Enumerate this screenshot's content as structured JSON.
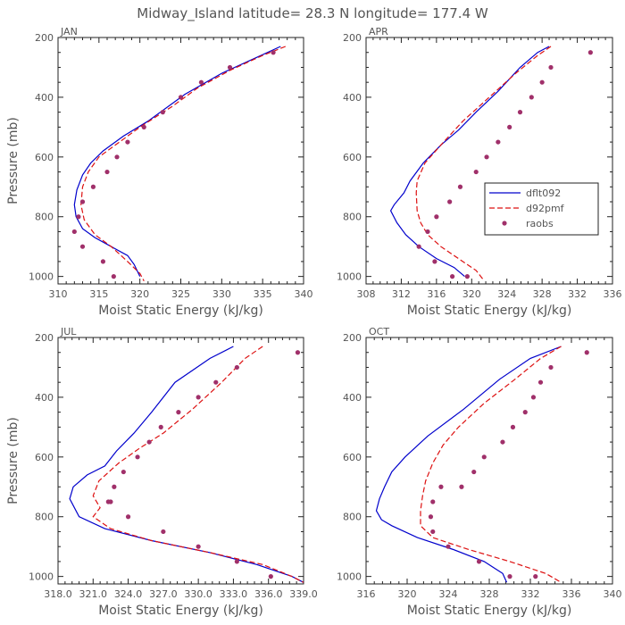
{
  "figure": {
    "title": "Midway_Island  latitude= 28.3 N longitude= 177.4 W"
  },
  "series_names": {
    "model1": "dflt092",
    "model2": "d92pmf",
    "obs": "raobs"
  },
  "colors": {
    "model1": "#0000cc",
    "model2": "#dd1111",
    "obs": "#a0306a"
  },
  "chart_data": [
    {
      "type": "line",
      "panel": "JAN",
      "title": "",
      "xlabel": "Moist Static Energy (kJ/kg)",
      "ylabel": "Pressure (mb)",
      "xlim": [
        310,
        340
      ],
      "ylim": [
        1025,
        200
      ],
      "xticks": [
        310,
        315,
        320,
        325,
        330,
        335,
        340
      ],
      "xticklabels": [
        "310",
        "315",
        "320",
        "325",
        "330",
        "335",
        "340"
      ],
      "yticks": [
        200,
        400,
        600,
        800,
        1000
      ],
      "yticklabels": [
        "200",
        "400",
        "600",
        "800",
        "1000"
      ],
      "legend": false,
      "series": [
        {
          "name": "dflt092",
          "style": "solid",
          "x": [
            337.2,
            334.0,
            330.0,
            325.5,
            321.0,
            318.0,
            315.5,
            314.0,
            313.0,
            312.3,
            312.0,
            312.2,
            313.0,
            314.5,
            316.5,
            318.5,
            319.3,
            320.0
          ],
          "y": [
            230,
            270,
            320,
            390,
            480,
            530,
            580,
            620,
            660,
            710,
            760,
            800,
            840,
            870,
            900,
            930,
            960,
            1000
          ]
        },
        {
          "name": "d92pmf",
          "style": "dashed",
          "x": [
            337.8,
            335.0,
            331.0,
            327.0,
            324.0,
            320.0,
            317.0,
            315.0,
            313.7,
            313.0,
            312.8,
            313.2,
            314.5,
            316.5,
            318.5,
            320.0,
            320.5
          ],
          "y": [
            230,
            260,
            310,
            370,
            430,
            500,
            560,
            600,
            650,
            700,
            760,
            810,
            860,
            900,
            950,
            990,
            1015
          ]
        },
        {
          "name": "raobs",
          "style": "markers",
          "x": [
            336.3,
            331.0,
            327.5,
            325.0,
            322.8,
            320.5,
            318.5,
            317.2,
            316.0,
            314.3,
            313.0,
            312.5,
            312.0,
            313.0,
            315.5,
            316.8
          ],
          "y": [
            250,
            300,
            350,
            400,
            450,
            500,
            550,
            600,
            650,
            700,
            750,
            800,
            850,
            900,
            950,
            1000
          ]
        }
      ]
    },
    {
      "type": "line",
      "panel": "APR",
      "title": "",
      "xlabel": "Moist Static Energy (kJ/kg)",
      "ylabel": "",
      "xlim": [
        308,
        336
      ],
      "ylim": [
        1025,
        200
      ],
      "xticks": [
        308,
        312,
        316,
        320,
        324,
        328,
        332,
        336
      ],
      "xticklabels": [
        "308",
        "312",
        "316",
        "320",
        "324",
        "328",
        "332",
        "336"
      ],
      "yticks": [
        200,
        400,
        600,
        800,
        1000
      ],
      "yticklabels": [
        "200",
        "400",
        "600",
        "800",
        "1000"
      ],
      "legend": true,
      "legend_position": "center-right",
      "series": [
        {
          "name": "dflt092",
          "style": "solid",
          "x": [
            328.8,
            327.5,
            325.5,
            323.0,
            320.5,
            318.5,
            316.5,
            314.5,
            313.0,
            312.3,
            311.2,
            310.8,
            311.5,
            312.5,
            314.0,
            316.0,
            318.0,
            319.2
          ],
          "y": [
            230,
            250,
            300,
            380,
            450,
            510,
            560,
            620,
            680,
            720,
            760,
            780,
            820,
            860,
            900,
            940,
            970,
            1000
          ]
        },
        {
          "name": "d92pmf",
          "style": "dashed",
          "x": [
            329.0,
            327.5,
            325.0,
            322.0,
            319.0,
            316.5,
            314.7,
            313.8,
            313.7,
            313.8,
            314.2,
            315.0,
            316.5,
            318.5,
            320.5,
            321.3
          ],
          "y": [
            230,
            260,
            320,
            400,
            480,
            560,
            620,
            680,
            720,
            780,
            820,
            860,
            900,
            940,
            980,
            1010
          ]
        },
        {
          "name": "raobs",
          "style": "markers",
          "x": [
            333.5,
            329.0,
            328.0,
            326.8,
            325.5,
            324.3,
            323.0,
            321.7,
            320.5,
            318.7,
            317.5,
            316.0,
            315.0,
            314.0,
            315.8,
            317.8,
            319.5
          ],
          "y": [
            250,
            300,
            350,
            400,
            450,
            500,
            550,
            600,
            650,
            700,
            750,
            800,
            850,
            900,
            950,
            1000,
            1000
          ]
        }
      ]
    },
    {
      "type": "line",
      "panel": "JUL",
      "title": "",
      "xlabel": "Moist Static Energy (kJ/kg)",
      "ylabel": "Pressure (mb)",
      "xlim": [
        318.0,
        339.0
      ],
      "ylim": [
        1025,
        200
      ],
      "xticks": [
        318.0,
        321.0,
        324.0,
        327.0,
        330.0,
        333.0,
        336.0,
        339.0
      ],
      "xticklabels": [
        "318.0",
        "321.0",
        "324.0",
        "327.0",
        "330.0",
        "333.0",
        "336.0",
        "339.0"
      ],
      "yticks": [
        200,
        400,
        600,
        800,
        1000
      ],
      "yticklabels": [
        "200",
        "400",
        "600",
        "800",
        "1000"
      ],
      "legend": false,
      "series": [
        {
          "name": "dflt092",
          "style": "solid",
          "x": [
            333.0,
            331.0,
            328.0,
            326.0,
            324.5,
            323.0,
            322.0,
            320.5,
            319.3,
            319.0,
            319.8,
            322.0,
            326.0,
            331.0,
            335.0,
            338.0,
            339.0
          ],
          "y": [
            230,
            270,
            350,
            450,
            520,
            580,
            630,
            660,
            700,
            740,
            800,
            840,
            880,
            920,
            960,
            1000,
            1020
          ]
        },
        {
          "name": "d92pmf",
          "style": "dashed",
          "x": [
            335.5,
            334.0,
            332.0,
            329.5,
            327.0,
            325.0,
            323.2,
            321.5,
            321.0,
            321.6,
            321.0,
            322.5,
            326.0,
            331.0,
            335.5,
            338.0,
            339.0
          ],
          "y": [
            230,
            270,
            350,
            440,
            520,
            570,
            620,
            680,
            730,
            770,
            800,
            840,
            880,
            920,
            960,
            1000,
            1020
          ]
        },
        {
          "name": "raobs",
          "style": "markers",
          "x": [
            338.5,
            333.3,
            331.5,
            330.0,
            328.3,
            326.8,
            325.8,
            324.8,
            323.6,
            322.8,
            322.3,
            322.5,
            324.0,
            327.0,
            330.0,
            333.3,
            336.2
          ],
          "y": [
            250,
            300,
            350,
            400,
            450,
            500,
            550,
            600,
            650,
            700,
            750,
            750,
            800,
            850,
            900,
            950,
            1000
          ]
        }
      ]
    },
    {
      "type": "line",
      "panel": "OCT",
      "title": "",
      "xlabel": "Moist Static Energy (kJ/kg)",
      "ylabel": "",
      "xlim": [
        316,
        340
      ],
      "ylim": [
        1025,
        200
      ],
      "xticks": [
        316,
        320,
        324,
        328,
        332,
        336,
        340
      ],
      "xticklabels": [
        "316",
        "320",
        "324",
        "328",
        "332",
        "336",
        "340"
      ],
      "yticks": [
        200,
        400,
        600,
        800,
        1000
      ],
      "yticklabels": [
        "200",
        "400",
        "600",
        "800",
        "1000"
      ],
      "legend": false,
      "series": [
        {
          "name": "dflt092",
          "style": "solid",
          "x": [
            335.0,
            332.0,
            329.0,
            325.5,
            322.0,
            319.8,
            318.5,
            317.8,
            317.3,
            317.0,
            317.5,
            318.5,
            321.0,
            324.5,
            327.5,
            329.3,
            329.7
          ],
          "y": [
            230,
            270,
            340,
            440,
            530,
            600,
            650,
            700,
            740,
            780,
            810,
            830,
            870,
            910,
            950,
            990,
            1020
          ]
        },
        {
          "name": "d92pmf",
          "style": "dashed",
          "x": [
            335.0,
            333.0,
            330.5,
            327.5,
            325.0,
            323.5,
            322.5,
            321.8,
            321.5,
            321.3,
            321.3,
            322.5,
            326.0,
            330.0,
            333.5,
            335.0
          ],
          "y": [
            230,
            270,
            340,
            420,
            500,
            560,
            620,
            680,
            730,
            780,
            830,
            870,
            910,
            950,
            990,
            1020
          ]
        },
        {
          "name": "raobs",
          "style": "markers",
          "x": [
            337.5,
            334.0,
            333.0,
            332.3,
            331.5,
            330.3,
            329.3,
            327.5,
            326.5,
            325.3,
            323.3,
            322.5,
            322.3,
            322.5,
            324.0,
            327.0,
            330.0,
            332.5
          ],
          "y": [
            250,
            300,
            350,
            400,
            450,
            500,
            550,
            600,
            650,
            700,
            700,
            750,
            800,
            850,
            900,
            950,
            1000,
            1000
          ]
        }
      ]
    }
  ]
}
